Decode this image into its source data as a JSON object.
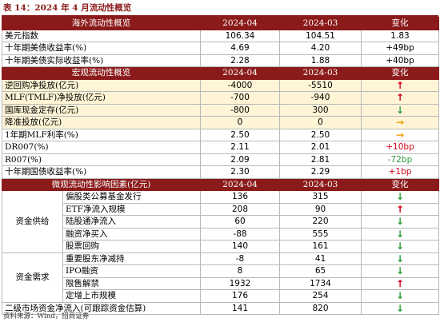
{
  "title": "表 14：2024 年 4 月流动性概览",
  "source": "资料来源：Wind，招商证券",
  "colors": {
    "header_bg": "#8b1a1a",
    "highlight_bg": "#fff4d6",
    "up": "#d0021b",
    "down": "#2e9b3a",
    "flat": "#f0a000"
  },
  "overseas": {
    "header": [
      "海外流动性概览",
      "2024-04",
      "2024-03",
      "变化"
    ],
    "rows": [
      [
        "美元指数",
        "106.34",
        "104.51",
        "1.83"
      ],
      [
        "十年期美债收益率(%)",
        "4.69",
        "4.20",
        "+49bp"
      ],
      [
        "十年期美债实际收益率(%)",
        "2.28",
        "1.88",
        "+40bp"
      ]
    ]
  },
  "macro": {
    "header": [
      "宏观流动性概览",
      "2024-04",
      "2024-03",
      "变化"
    ],
    "rows": [
      {
        "label": "逆回购净投放(亿元)",
        "cur": "-4000",
        "prev": "-5510",
        "change": "↑",
        "dir": "up",
        "highlight": true
      },
      {
        "label": "MLF(TMLF)净投放(亿元)",
        "cur": "-700",
        "prev": "-940",
        "change": "↑",
        "dir": "up",
        "highlight": true
      },
      {
        "label": "国库现金定存(亿元)",
        "cur": "-800",
        "prev": "300",
        "change": "↓",
        "dir": "down",
        "highlight": true
      },
      {
        "label": "降准投放(亿元)",
        "cur": "0",
        "prev": "0",
        "change": "→",
        "dir": "flat",
        "highlight": true
      },
      {
        "label": "1年期MLF利率(%)",
        "cur": "2.50",
        "prev": "2.50",
        "change": "→",
        "dir": "flat",
        "highlight": false
      },
      {
        "label": "DR007(%)",
        "cur": "2.11",
        "prev": "2.01",
        "change": "+10bp",
        "dir": "up",
        "highlight": false
      },
      {
        "label": "R007(%)",
        "cur": "2.09",
        "prev": "2.81",
        "change": "-72bp",
        "dir": "down",
        "highlight": false
      },
      {
        "label": "十年期国债收益率(%)",
        "cur": "2.30",
        "prev": "2.29",
        "change": "+1bp",
        "dir": "up",
        "highlight": false
      }
    ]
  },
  "micro": {
    "header": [
      "微观流动性影响因素(亿元)",
      "2024-04",
      "2024-03",
      "变化"
    ],
    "supply_group": "资金供给",
    "supply": [
      {
        "label": "偏股类公募基金发行",
        "cur": "136",
        "prev": "315",
        "change": "↓",
        "dir": "down"
      },
      {
        "label": "ETF净流入规模",
        "cur": "208",
        "prev": "90",
        "change": "↑",
        "dir": "up"
      },
      {
        "label": "陆股通净流入",
        "cur": "60",
        "prev": "220",
        "change": "↓",
        "dir": "down"
      },
      {
        "label": "融资净买入",
        "cur": "-88",
        "prev": "555",
        "change": "↓",
        "dir": "down"
      },
      {
        "label": "股票回购",
        "cur": "140",
        "prev": "161",
        "change": "↓",
        "dir": "down"
      }
    ],
    "demand_group": "资金需求",
    "demand": [
      {
        "label": "重要股东净减持",
        "cur": "-8",
        "prev": "41",
        "change": "↓",
        "dir": "down"
      },
      {
        "label": "IPO融资",
        "cur": "8",
        "prev": "65",
        "change": "↓",
        "dir": "down"
      },
      {
        "label": "限售解禁",
        "cur": "1932",
        "prev": "1734",
        "change": "↑",
        "dir": "up"
      },
      {
        "label": "定增上市规模",
        "cur": "176",
        "prev": "254",
        "change": "↓",
        "dir": "down"
      }
    ],
    "net": {
      "label": "二级市场资金净流入(可跟踪资金估算)",
      "cur": "141",
      "prev": "820",
      "change": "↓",
      "dir": "down"
    }
  }
}
